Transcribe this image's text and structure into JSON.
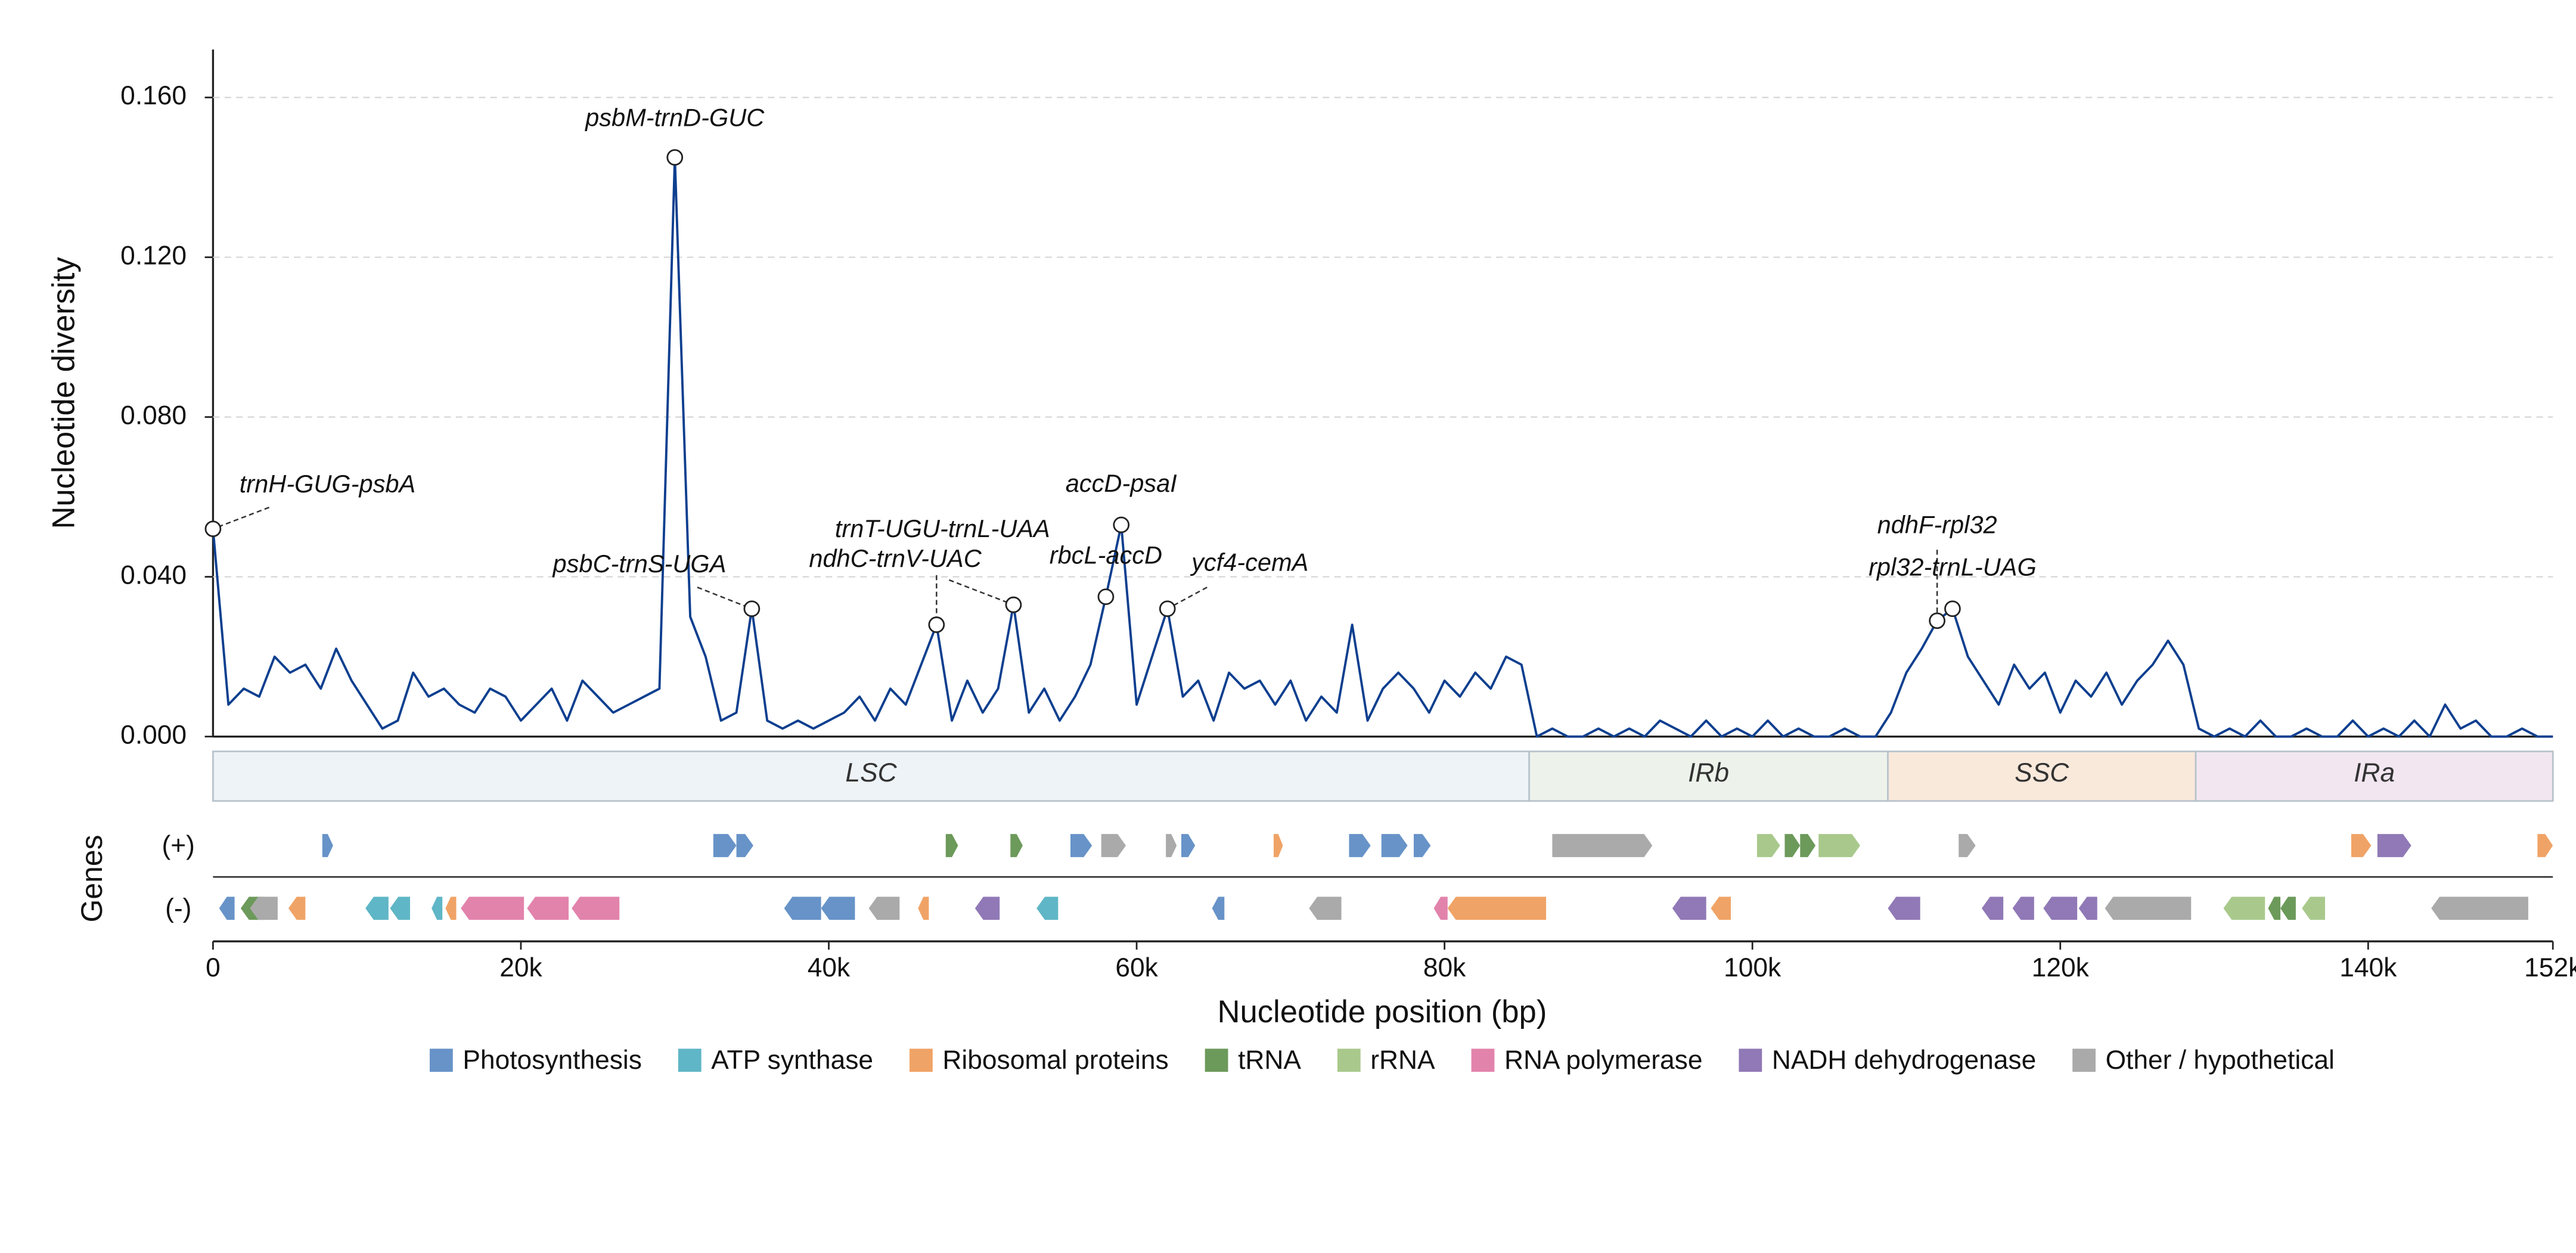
{
  "chart_data": {
    "type": "line",
    "ylabel": "Nucleotide diversity",
    "xlabel": "Nucleotide position (bp)",
    "genes_label": "Genes",
    "strand_labels": [
      "(+)",
      "(-)"
    ],
    "color": "#0d3f8f",
    "xlim": [
      0,
      152000
    ],
    "ylim": [
      0,
      0.172
    ],
    "xticks": [
      0,
      {
        "value": 20000,
        "label": "20k"
      },
      {
        "value": 40000,
        "label": "40k"
      },
      {
        "value": 60000,
        "label": "60k"
      },
      {
        "value": 80000,
        "label": "80k"
      },
      {
        "value": 100000,
        "label": "100k"
      },
      {
        "value": 120000,
        "label": "120k"
      },
      {
        "value": 140000,
        "label": "140k"
      },
      {
        "value": 152000,
        "label": "152k"
      }
    ],
    "yticks": [
      {
        "value": 0,
        "label": "0.000"
      },
      {
        "value": 0.04,
        "label": "0.040"
      },
      {
        "value": 0.08,
        "label": "0.080"
      },
      {
        "value": 0.12,
        "label": "0.120"
      },
      {
        "value": 0.16,
        "label": "0.160"
      }
    ],
    "grid": true,
    "x": [
      0,
      1000,
      2000,
      3000,
      4000,
      5000,
      6000,
      7000,
      8000,
      9000,
      10000,
      11000,
      12000,
      13000,
      14000,
      15000,
      16000,
      17000,
      18000,
      19000,
      20000,
      21000,
      22000,
      23000,
      24000,
      25000,
      26000,
      27000,
      28000,
      29000,
      30000,
      31000,
      32000,
      33000,
      34000,
      35000,
      36000,
      37000,
      38000,
      39000,
      40000,
      41000,
      42000,
      43000,
      44000,
      45000,
      46000,
      47000,
      48000,
      49000,
      50000,
      51000,
      52000,
      53000,
      54000,
      55000,
      56000,
      57000,
      58000,
      59000,
      60000,
      61000,
      62000,
      63000,
      64000,
      65000,
      66000,
      67000,
      68000,
      69000,
      70000,
      71000,
      72000,
      73000,
      74000,
      75000,
      76000,
      77000,
      78000,
      79000,
      80000,
      81000,
      82000,
      83000,
      84000,
      85000,
      86000,
      87000,
      88000,
      89000,
      90000,
      91000,
      92000,
      93000,
      94000,
      95000,
      96000,
      97000,
      98000,
      99000,
      100000,
      101000,
      102000,
      103000,
      104000,
      105000,
      106000,
      107000,
      108000,
      109000,
      110000,
      111000,
      112000,
      113000,
      114000,
      115000,
      116000,
      117000,
      118000,
      119000,
      120000,
      121000,
      122000,
      123000,
      124000,
      125000,
      126000,
      127000,
      128000,
      129000,
      130000,
      131000,
      132000,
      133000,
      134000,
      135000,
      136000,
      137000,
      138000,
      139000,
      140000,
      141000,
      142000,
      143000,
      144000,
      145000,
      146000,
      147000,
      148000,
      149000,
      150000,
      151000,
      152000
    ],
    "values": [
      0.052,
      0.008,
      0.012,
      0.01,
      0.02,
      0.016,
      0.018,
      0.012,
      0.022,
      0.014,
      0.008,
      0.002,
      0.004,
      0.016,
      0.01,
      0.012,
      0.008,
      0.006,
      0.012,
      0.01,
      0.004,
      0.008,
      0.012,
      0.004,
      0.014,
      0.01,
      0.006,
      0.008,
      0.01,
      0.012,
      0.145,
      0.03,
      0.02,
      0.004,
      0.006,
      0.032,
      0.004,
      0.002,
      0.004,
      0.002,
      0.004,
      0.006,
      0.01,
      0.004,
      0.012,
      0.008,
      0.018,
      0.028,
      0.004,
      0.014,
      0.006,
      0.012,
      0.033,
      0.006,
      0.012,
      0.004,
      0.01,
      0.018,
      0.035,
      0.053,
      0.008,
      0.02,
      0.032,
      0.01,
      0.014,
      0.004,
      0.016,
      0.012,
      0.014,
      0.008,
      0.014,
      0.004,
      0.01,
      0.006,
      0.028,
      0.004,
      0.012,
      0.016,
      0.012,
      0.006,
      0.014,
      0.01,
      0.016,
      0.012,
      0.02,
      0.018,
      0,
      0.002,
      0,
      0,
      0.002,
      0,
      0.002,
      0,
      0.004,
      0.002,
      0,
      0.004,
      0,
      0.002,
      0,
      0.004,
      0,
      0.002,
      0,
      0,
      0.002,
      0,
      0,
      0.006,
      0.016,
      0.022,
      0.029,
      0.032,
      0.02,
      0.014,
      0.008,
      0.018,
      0.012,
      0.016,
      0.006,
      0.014,
      0.01,
      0.016,
      0.008,
      0.014,
      0.018,
      0.024,
      0.018,
      0.002,
      0,
      0.002,
      0,
      0.004,
      0,
      0,
      0.002,
      0,
      0,
      0.004,
      0,
      0.002,
      0,
      0.004,
      0,
      0.008,
      0.002,
      0.004,
      0,
      0,
      0.002,
      0,
      0
    ],
    "annotations": [
      {
        "text": "trnH-GUG-psbA",
        "x": 0,
        "y": 0.052
      },
      {
        "text": "psbM-trnD-GUC",
        "x": 30000,
        "y": 0.145
      },
      {
        "text": "psbC-trnS-UGA",
        "x": 35000,
        "y": 0.032
      },
      {
        "text": "ndhC-trnV-UAC",
        "x": 47000,
        "y": 0.028
      },
      {
        "text": "trnT-UGU-trnL-UAA",
        "x": 52000,
        "y": 0.033
      },
      {
        "text": "rbcL-accD",
        "x": 58000,
        "y": 0.035
      },
      {
        "text": "accD-psaI",
        "x": 59000,
        "y": 0.053
      },
      {
        "text": "ycf4-cemA",
        "x": 62000,
        "y": 0.032
      },
      {
        "text": "ndhF-rpl32",
        "x": 112000,
        "y": 0.029
      },
      {
        "text": "rpl32-trnL-UAG",
        "x": 113000,
        "y": 0.032
      }
    ],
    "regions": [
      {
        "name": "LSC",
        "start": 0,
        "end": 85500,
        "color": "#eef3f7"
      },
      {
        "name": "IRb",
        "start": 85500,
        "end": 108800,
        "color": "#edf3eb"
      },
      {
        "name": "SSC",
        "start": 108800,
        "end": 128800,
        "color": "#f9e9db"
      },
      {
        "name": "IRa",
        "start": 128800,
        "end": 152000,
        "color": "#f2e7f1"
      }
    ],
    "legend": [
      {
        "name": "Photosynthesis",
        "color": "#6793c8"
      },
      {
        "name": "ATP synthase",
        "color": "#5fb6c6"
      },
      {
        "name": "Ribosomal proteins",
        "color": "#f0a366"
      },
      {
        "name": "tRNA",
        "color": "#6c9a5a"
      },
      {
        "name": "rRNA",
        "color": "#a9c98c"
      },
      {
        "name": "RNA polymerase",
        "color": "#e283ac"
      },
      {
        "name": "NADH dehydrogenase",
        "color": "#9079b6"
      },
      {
        "name": "Other / hypothetical",
        "color": "#aaaaaa"
      }
    ],
    "genes": [
      {
        "start": 7100,
        "end": 7800,
        "strand": "+",
        "category": "Photosynthesis"
      },
      {
        "start": 32500,
        "end": 34000,
        "strand": "+",
        "category": "Photosynthesis"
      },
      {
        "start": 34000,
        "end": 35100,
        "strand": "+",
        "category": "Photosynthesis"
      },
      {
        "start": 47600,
        "end": 48400,
        "strand": "+",
        "category": "tRNA"
      },
      {
        "start": 51800,
        "end": 52600,
        "strand": "+",
        "category": "tRNA"
      },
      {
        "start": 55700,
        "end": 57100,
        "strand": "+",
        "category": "Photosynthesis"
      },
      {
        "start": 57700,
        "end": 59300,
        "strand": "+",
        "category": "Other / hypothetical"
      },
      {
        "start": 61900,
        "end": 62600,
        "strand": "+",
        "category": "Other / hypothetical"
      },
      {
        "start": 62900,
        "end": 63800,
        "strand": "+",
        "category": "Photosynthesis"
      },
      {
        "start": 68900,
        "end": 69500,
        "strand": "+",
        "category": "Ribosomal proteins"
      },
      {
        "start": 73800,
        "end": 75200,
        "strand": "+",
        "category": "Photosynthesis"
      },
      {
        "start": 75900,
        "end": 77600,
        "strand": "+",
        "category": "Photosynthesis"
      },
      {
        "start": 78000,
        "end": 79100,
        "strand": "+",
        "category": "Photosynthesis"
      },
      {
        "start": 87000,
        "end": 93500,
        "strand": "+",
        "category": "Other / hypothetical"
      },
      {
        "start": 100300,
        "end": 101800,
        "strand": "+",
        "category": "rRNA"
      },
      {
        "start": 102100,
        "end": 103100,
        "strand": "+",
        "category": "tRNA"
      },
      {
        "start": 103100,
        "end": 104100,
        "strand": "+",
        "category": "tRNA"
      },
      {
        "start": 104300,
        "end": 107000,
        "strand": "+",
        "category": "rRNA"
      },
      {
        "start": 113400,
        "end": 114500,
        "strand": "+",
        "category": "Other / hypothetical"
      },
      {
        "start": 138900,
        "end": 140200,
        "strand": "+",
        "category": "Ribosomal proteins"
      },
      {
        "start": 140600,
        "end": 142800,
        "strand": "+",
        "category": "NADH dehydrogenase"
      },
      {
        "start": 151000,
        "end": 152000,
        "strand": "+",
        "category": "Ribosomal proteins"
      },
      {
        "start": 400,
        "end": 1400,
        "strand": "-",
        "category": "Photosynthesis"
      },
      {
        "start": 1800,
        "end": 3300,
        "strand": "-",
        "category": "tRNA"
      },
      {
        "start": 2400,
        "end": 4200,
        "strand": "-",
        "category": "Other / hypothetical"
      },
      {
        "start": 4900,
        "end": 6000,
        "strand": "-",
        "category": "Ribosomal proteins"
      },
      {
        "start": 9900,
        "end": 11400,
        "strand": "-",
        "category": "ATP synthase"
      },
      {
        "start": 11500,
        "end": 12800,
        "strand": "-",
        "category": "ATP synthase"
      },
      {
        "start": 14200,
        "end": 14900,
        "strand": "-",
        "category": "ATP synthase"
      },
      {
        "start": 15100,
        "end": 15800,
        "strand": "-",
        "category": "Ribosomal proteins"
      },
      {
        "start": 16100,
        "end": 20200,
        "strand": "-",
        "category": "RNA polymerase"
      },
      {
        "start": 20400,
        "end": 23100,
        "strand": "-",
        "category": "RNA polymerase"
      },
      {
        "start": 23300,
        "end": 26400,
        "strand": "-",
        "category": "RNA polymerase"
      },
      {
        "start": 37100,
        "end": 39500,
        "strand": "-",
        "category": "Photosynthesis"
      },
      {
        "start": 39500,
        "end": 41700,
        "strand": "-",
        "category": "Photosynthesis"
      },
      {
        "start": 42600,
        "end": 44600,
        "strand": "-",
        "category": "Other / hypothetical"
      },
      {
        "start": 45800,
        "end": 46500,
        "strand": "-",
        "category": "Ribosomal proteins"
      },
      {
        "start": 49500,
        "end": 51100,
        "strand": "-",
        "category": "NADH dehydrogenase"
      },
      {
        "start": 53500,
        "end": 54900,
        "strand": "-",
        "category": "ATP synthase"
      },
      {
        "start": 64900,
        "end": 65700,
        "strand": "-",
        "category": "Photosynthesis"
      },
      {
        "start": 71200,
        "end": 73300,
        "strand": "-",
        "category": "Other / hypothetical"
      },
      {
        "start": 79300,
        "end": 80200,
        "strand": "-",
        "category": "RNA polymerase"
      },
      {
        "start": 80200,
        "end": 86600,
        "strand": "-",
        "category": "Ribosomal proteins"
      },
      {
        "start": 94800,
        "end": 97000,
        "strand": "-",
        "category": "NADH dehydrogenase"
      },
      {
        "start": 97300,
        "end": 98600,
        "strand": "-",
        "category": "Ribosomal proteins"
      },
      {
        "start": 108800,
        "end": 110900,
        "strand": "-",
        "category": "NADH dehydrogenase"
      },
      {
        "start": 114900,
        "end": 116300,
        "strand": "-",
        "category": "NADH dehydrogenase"
      },
      {
        "start": 116900,
        "end": 118300,
        "strand": "-",
        "category": "NADH dehydrogenase"
      },
      {
        "start": 118900,
        "end": 121100,
        "strand": "-",
        "category": "NADH dehydrogenase"
      },
      {
        "start": 121200,
        "end": 122400,
        "strand": "-",
        "category": "NADH dehydrogenase"
      },
      {
        "start": 122900,
        "end": 128500,
        "strand": "-",
        "category": "Other / hypothetical"
      },
      {
        "start": 130600,
        "end": 133300,
        "strand": "-",
        "category": "rRNA"
      },
      {
        "start": 133500,
        "end": 134300,
        "strand": "-",
        "category": "tRNA"
      },
      {
        "start": 134300,
        "end": 135300,
        "strand": "-",
        "category": "tRNA"
      },
      {
        "start": 135700,
        "end": 137200,
        "strand": "-",
        "category": "rRNA"
      },
      {
        "start": 144100,
        "end": 150400,
        "strand": "-",
        "category": "Other / hypothetical"
      }
    ]
  }
}
